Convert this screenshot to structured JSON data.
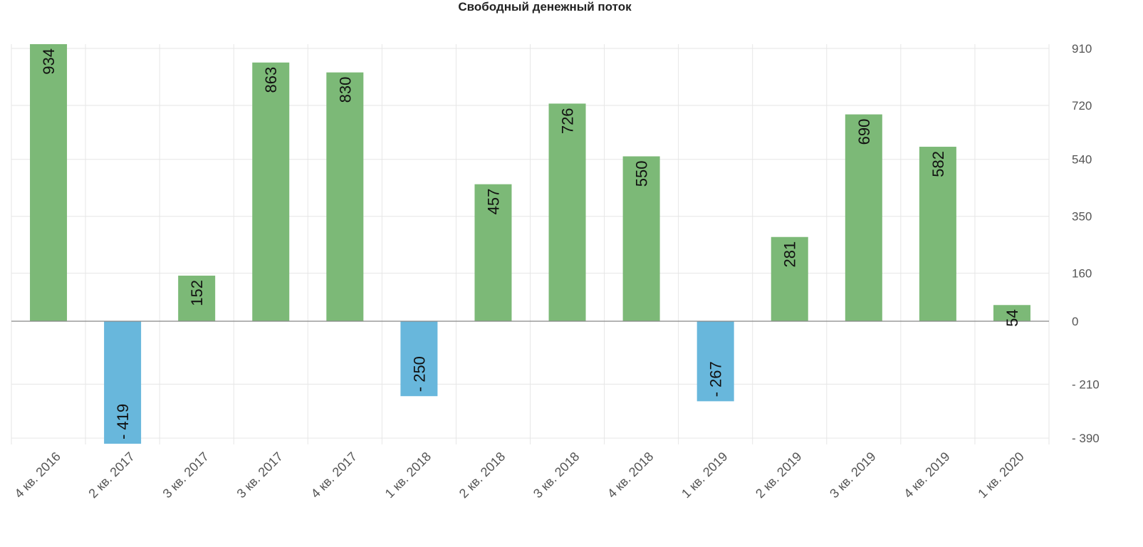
{
  "chart_data": {
    "type": "bar",
    "title": "Свободный денежный поток",
    "xlabel": "",
    "ylabel": "",
    "categories": [
      "4 кв. 2016",
      "2 кв. 2017",
      "3 кв. 2017",
      "3 кв. 2017",
      "4 кв. 2017",
      "1 кв. 2018",
      "2 кв. 2018",
      "3 кв. 2018",
      "4 кв. 2018",
      "1 кв. 2019",
      "2 кв. 2019",
      "3 кв. 2019",
      "4 кв. 2019",
      "1 кв. 2020"
    ],
    "values": [
      934,
      -419,
      152,
      863,
      830,
      -250,
      457,
      726,
      550,
      -267,
      281,
      690,
      582,
      54
    ],
    "value_labels": [
      "934",
      "- 419",
      "152",
      "863",
      "830",
      "- 250",
      "457",
      "726",
      "550",
      "- 267",
      "281",
      "690",
      "582",
      "54"
    ],
    "yticks": [
      910,
      720,
      540,
      350,
      160,
      0,
      -210,
      -390
    ],
    "ytick_labels": [
      "910",
      "720",
      "540",
      "350",
      "160",
      "0",
      "- 210",
      "- 390"
    ],
    "ylim": [
      -410,
      910
    ],
    "grid": true,
    "axis_position": "right",
    "colors": {
      "positive": "#7cb977",
      "negative": "#68b7dc",
      "grid": "#e6e6e6",
      "zero_line": "#888888"
    }
  }
}
